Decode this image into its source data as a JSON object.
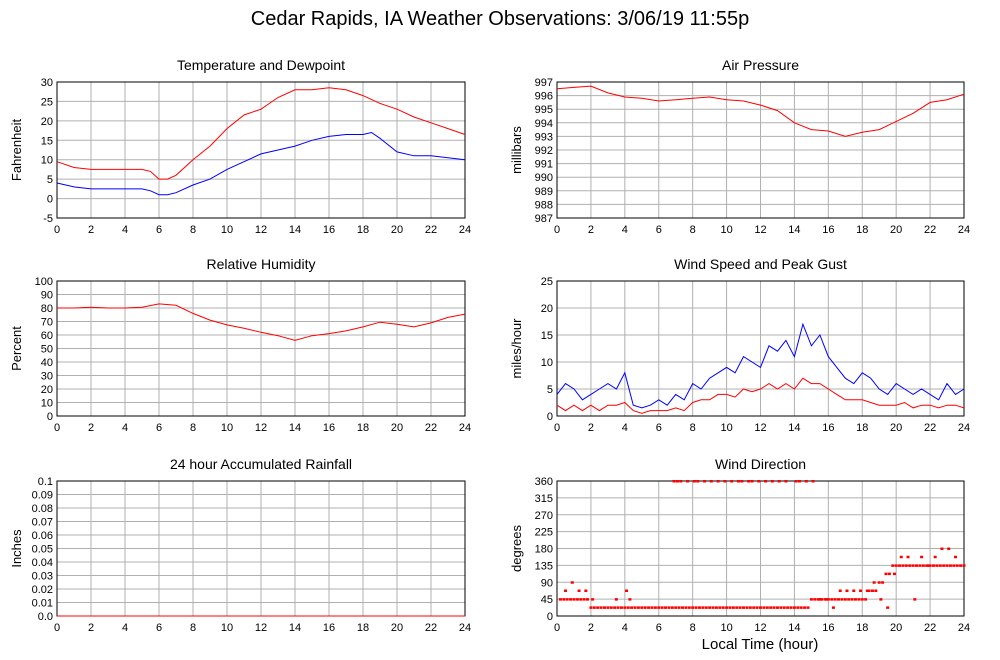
{
  "title": "Cedar Rapids, IA Weather Observations: 3/06/19 11:55p",
  "xlabel": "Local Time (hour)",
  "colors": {
    "primary": "#ff0000",
    "secondary": "#0000ff",
    "grid": "#b0b0b0"
  },
  "chart_data": [
    {
      "type": "line",
      "title": "Temperature and Dewpoint",
      "ylabel": "Fahrenheit",
      "xlim": [
        0,
        24
      ],
      "ylim": [
        -5,
        30
      ],
      "xticks": [
        0,
        2,
        4,
        6,
        8,
        10,
        12,
        14,
        16,
        18,
        20,
        22,
        24
      ],
      "yticks": [
        -5,
        0,
        5,
        10,
        15,
        20,
        25,
        30
      ],
      "grid": true,
      "series": [
        {
          "color": "#ff0000",
          "x": [
            0,
            1,
            2,
            3,
            4,
            5,
            5.5,
            6,
            6.5,
            7,
            8,
            9,
            10,
            11,
            12,
            13,
            14,
            15,
            16,
            17,
            18,
            19,
            20,
            21,
            22,
            23,
            24
          ],
          "y": [
            9.5,
            8,
            7.5,
            7.5,
            7.5,
            7.5,
            7,
            5,
            5,
            6,
            10,
            13.5,
            18,
            21.5,
            23,
            26,
            28,
            28,
            28.5,
            28,
            26.5,
            24.5,
            23,
            21,
            19.5,
            18,
            16.5
          ]
        },
        {
          "color": "#0000ff",
          "x": [
            0,
            1,
            2,
            3,
            4,
            5,
            5.5,
            6,
            6.5,
            7,
            8,
            9,
            10,
            11,
            12,
            13,
            14,
            15,
            16,
            17,
            18,
            18.5,
            19,
            20,
            21,
            22,
            23,
            24
          ],
          "y": [
            4,
            3,
            2.5,
            2.5,
            2.5,
            2.5,
            2,
            1,
            1,
            1.5,
            3.5,
            5,
            7.5,
            9.5,
            11.5,
            12.5,
            13.5,
            15,
            16,
            16.5,
            16.5,
            17,
            15.5,
            12,
            11,
            11,
            10.5,
            10
          ]
        }
      ]
    },
    {
      "type": "line",
      "title": "Air Pressure",
      "ylabel": "millibars",
      "xlim": [
        0,
        24
      ],
      "ylim": [
        987,
        997
      ],
      "xticks": [
        0,
        2,
        4,
        6,
        8,
        10,
        12,
        14,
        16,
        18,
        20,
        22,
        24
      ],
      "yticks": [
        987,
        988,
        989,
        990,
        991,
        992,
        993,
        994,
        995,
        996,
        997
      ],
      "grid": true,
      "series": [
        {
          "color": "#ff0000",
          "x": [
            0,
            1,
            2,
            3,
            4,
            5,
            6,
            7,
            8,
            9,
            10,
            11,
            12,
            13,
            14,
            15,
            16,
            17,
            18,
            19,
            20,
            21,
            22,
            23,
            24
          ],
          "y": [
            996.5,
            996.6,
            996.7,
            996.2,
            995.9,
            995.8,
            995.6,
            995.7,
            995.8,
            995.9,
            995.7,
            995.6,
            995.3,
            994.9,
            994.0,
            993.5,
            993.4,
            993.0,
            993.3,
            993.5,
            994.1,
            994.7,
            995.5,
            995.7,
            996.1
          ]
        }
      ]
    },
    {
      "type": "line",
      "title": "Relative Humidity",
      "ylabel": "Percent",
      "xlim": [
        0,
        24
      ],
      "ylim": [
        0,
        100
      ],
      "xticks": [
        0,
        2,
        4,
        6,
        8,
        10,
        12,
        14,
        16,
        18,
        20,
        22,
        24
      ],
      "yticks": [
        0,
        10,
        20,
        30,
        40,
        50,
        60,
        70,
        80,
        90,
        100
      ],
      "grid": true,
      "series": [
        {
          "color": "#ff0000",
          "x": [
            0,
            1,
            2,
            3,
            4,
            5,
            6,
            7,
            8,
            9,
            10,
            11,
            12,
            13,
            14,
            15,
            16,
            17,
            18,
            19,
            20,
            21,
            22,
            23,
            24
          ],
          "y": [
            80,
            80,
            80.5,
            80,
            80,
            80.5,
            83,
            82,
            76,
            71,
            67.5,
            65,
            62,
            59.5,
            56,
            59.5,
            61,
            63,
            66,
            69.5,
            68,
            66,
            69,
            73,
            75.5
          ]
        }
      ]
    },
    {
      "type": "line",
      "title": "Wind Speed and Peak Gust",
      "ylabel": "miles/hour",
      "xlim": [
        0,
        24
      ],
      "ylim": [
        0,
        25
      ],
      "xticks": [
        0,
        2,
        4,
        6,
        8,
        10,
        12,
        14,
        16,
        18,
        20,
        22,
        24
      ],
      "yticks": [
        0,
        5,
        10,
        15,
        20,
        25
      ],
      "grid": true,
      "series": [
        {
          "color": "#0000ff",
          "x": [
            0,
            0.5,
            1,
            1.5,
            2,
            2.5,
            3,
            3.5,
            4,
            4.5,
            5,
            5.5,
            6,
            6.5,
            7,
            7.5,
            8,
            8.5,
            9,
            9.5,
            10,
            10.5,
            11,
            11.5,
            12,
            12.5,
            13,
            13.5,
            14,
            14.5,
            15,
            15.5,
            16,
            16.5,
            17,
            17.5,
            18,
            18.5,
            19,
            19.5,
            20,
            20.5,
            21,
            21.5,
            22,
            22.5,
            23,
            23.5,
            24
          ],
          "y": [
            4,
            6,
            5,
            3,
            4,
            5,
            6,
            5,
            8,
            2,
            1.5,
            2,
            3,
            2,
            4,
            3,
            6,
            5,
            7,
            8,
            9,
            8,
            11,
            10,
            9,
            13,
            12,
            14,
            11,
            17,
            13,
            15,
            11,
            9,
            7,
            6,
            8,
            7,
            5,
            4,
            6,
            5,
            4,
            5,
            4,
            3,
            6,
            4,
            5
          ]
        },
        {
          "color": "#ff0000",
          "x": [
            0,
            0.5,
            1,
            1.5,
            2,
            2.5,
            3,
            3.5,
            4,
            4.5,
            5,
            5.5,
            6,
            6.5,
            7,
            7.5,
            8,
            8.5,
            9,
            9.5,
            10,
            10.5,
            11,
            11.5,
            12,
            12.5,
            13,
            13.5,
            14,
            14.5,
            15,
            15.5,
            16,
            16.5,
            17,
            17.5,
            18,
            18.5,
            19,
            19.5,
            20,
            20.5,
            21,
            21.5,
            22,
            22.5,
            23,
            23.5,
            24
          ],
          "y": [
            2,
            1,
            2,
            1,
            2,
            1,
            2,
            2,
            2.5,
            1,
            0.5,
            1,
            1,
            1,
            1.5,
            1,
            2.5,
            3,
            3,
            4,
            4,
            3.5,
            5,
            4.5,
            5,
            6,
            5,
            6,
            5,
            7,
            6,
            6,
            5,
            4,
            3,
            3,
            3,
            2.5,
            2,
            2,
            2,
            2.5,
            1.5,
            2,
            2,
            1.5,
            2,
            2,
            1.5
          ]
        }
      ]
    },
    {
      "type": "line",
      "title": "24 hour Accumulated Rainfall",
      "ylabel": "Inches",
      "xlim": [
        0,
        24
      ],
      "ylim": [
        0,
        0.1
      ],
      "xticks": [
        0,
        2,
        4,
        6,
        8,
        10,
        12,
        14,
        16,
        18,
        20,
        22,
        24
      ],
      "yticks": [
        "0.0",
        "0.01",
        "0.02",
        "0.03",
        "0.04",
        "0.05",
        "0.06",
        "0.07",
        "0.08",
        "0.09",
        "0.1"
      ],
      "grid": true,
      "series": [
        {
          "color": "#ff0000",
          "x": [
            0,
            24
          ],
          "y": [
            0,
            0
          ]
        }
      ]
    },
    {
      "type": "scatter",
      "title": "Wind Direction",
      "ylabel": "degrees",
      "xlim": [
        0,
        24
      ],
      "ylim": [
        0,
        360
      ],
      "xticks": [
        0,
        2,
        4,
        6,
        8,
        10,
        12,
        14,
        16,
        18,
        20,
        22,
        24
      ],
      "yticks": [
        0,
        45,
        90,
        135,
        180,
        225,
        270,
        315,
        360
      ],
      "grid": true,
      "series": [
        {
          "color": "#ff0000",
          "x": [
            0.2,
            0.4,
            0.6,
            0.8,
            1.0,
            1.2,
            1.4,
            1.6,
            1.8,
            2.0,
            2.2,
            2.4,
            2.6,
            2.8,
            3.0,
            3.2,
            3.4,
            3.6,
            3.8,
            4.0,
            4.2,
            4.4,
            4.6,
            4.8,
            5.0,
            5.2,
            5.4,
            5.6,
            5.8,
            6.0,
            6.2,
            6.4,
            6.6,
            6.8,
            7.0,
            7.2,
            7.4,
            7.6,
            7.8,
            8.0,
            8.2,
            8.4,
            8.6,
            8.8,
            9.0,
            9.2,
            9.4,
            9.6,
            9.8,
            10.0,
            10.2,
            10.4,
            10.6,
            10.8,
            11.0,
            11.2,
            11.4,
            11.6,
            11.8,
            12.0,
            12.2,
            12.4,
            12.6,
            12.8,
            13.0,
            13.2,
            13.4,
            13.6,
            13.8,
            14.0,
            14.2,
            14.4,
            14.6,
            14.8,
            15.0,
            15.2,
            15.4,
            15.6,
            15.8,
            16.0,
            16.2,
            16.4,
            16.6,
            16.8,
            17.0,
            17.2,
            17.4,
            17.6,
            17.8,
            18.0,
            18.2,
            18.4,
            18.6,
            18.8,
            19.0,
            19.2,
            19.4,
            19.6,
            19.8,
            20.0,
            20.2,
            20.4,
            20.6,
            20.8,
            21.0,
            21.2,
            21.4,
            21.6,
            21.8,
            22.0,
            22.2,
            22.4,
            22.6,
            22.8,
            23.0,
            23.2,
            23.4,
            23.6,
            23.8,
            24.0,
            0.5,
            0.9,
            1.3,
            1.7,
            2.1,
            3.5,
            4.1,
            4.3,
            6.9,
            7.1,
            7.3,
            7.7,
            8.1,
            8.3,
            8.7,
            9.1,
            9.5,
            9.9,
            10.3,
            10.7,
            10.9,
            11.3,
            11.5,
            11.9,
            12.3,
            12.7,
            13.1,
            13.5,
            14.1,
            14.3,
            14.7,
            15.1,
            15.5,
            15.9,
            16.3,
            16.7,
            17.1,
            17.5,
            17.9,
            18.3,
            18.7,
            19.1,
            19.5,
            19.9,
            20.3,
            20.7,
            21.1,
            21.5,
            21.9,
            22.3,
            22.7,
            23.1,
            23.5
          ],
          "y": [
            45,
            45,
            45,
            45,
            45,
            45,
            45,
            45,
            45,
            23,
            23,
            23,
            23,
            23,
            23,
            23,
            23,
            23,
            23,
            23,
            23,
            23,
            23,
            23,
            23,
            23,
            23,
            23,
            23,
            23,
            23,
            23,
            23,
            23,
            23,
            23,
            23,
            23,
            23,
            23,
            23,
            23,
            23,
            23,
            23,
            23,
            23,
            23,
            23,
            23,
            23,
            23,
            23,
            23,
            23,
            23,
            23,
            23,
            23,
            23,
            23,
            23,
            23,
            23,
            23,
            23,
            23,
            23,
            23,
            23,
            23,
            23,
            23,
            23,
            45,
            45,
            45,
            45,
            45,
            45,
            45,
            45,
            45,
            45,
            45,
            45,
            45,
            45,
            45,
            45,
            45,
            68,
            68,
            68,
            90,
            90,
            113,
            113,
            135,
            135,
            135,
            135,
            135,
            135,
            135,
            135,
            135,
            135,
            135,
            135,
            135,
            135,
            135,
            135,
            135,
            135,
            135,
            135,
            135,
            135,
            68,
            90,
            68,
            68,
            45,
            45,
            68,
            45,
            360,
            360,
            360,
            360,
            360,
            360,
            360,
            360,
            360,
            360,
            360,
            360,
            360,
            360,
            360,
            360,
            360,
            360,
            360,
            360,
            360,
            360,
            360,
            360,
            45,
            45,
            23,
            68,
            68,
            68,
            68,
            68,
            90,
            45,
            23,
            113,
            158,
            158,
            45,
            158,
            135,
            158,
            180,
            180,
            158
          ]
        }
      ]
    }
  ]
}
